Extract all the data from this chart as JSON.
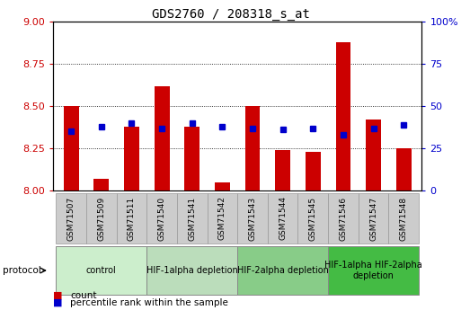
{
  "title": "GDS2760 / 208318_s_at",
  "samples": [
    "GSM71507",
    "GSM71509",
    "GSM71511",
    "GSM71540",
    "GSM71541",
    "GSM71542",
    "GSM71543",
    "GSM71544",
    "GSM71545",
    "GSM71546",
    "GSM71547",
    "GSM71548"
  ],
  "red_values": [
    8.5,
    8.07,
    8.38,
    8.62,
    8.38,
    8.05,
    8.5,
    8.24,
    8.23,
    8.88,
    8.42,
    8.25
  ],
  "blue_values": [
    35,
    38,
    40,
    37,
    40,
    38,
    37,
    36,
    37,
    33,
    37,
    39
  ],
  "ylim_left": [
    8.0,
    9.0
  ],
  "ylim_right": [
    0,
    100
  ],
  "yticks_left": [
    8.0,
    8.25,
    8.5,
    8.75,
    9.0
  ],
  "yticks_right": [
    0,
    25,
    50,
    75,
    100
  ],
  "ytick_labels_right": [
    "0",
    "25",
    "50",
    "75",
    "100%"
  ],
  "bar_color": "#cc0000",
  "dot_color": "#0000cc",
  "bar_bottom": 8.0,
  "groups": [
    {
      "label": "control",
      "start": 0,
      "end": 3,
      "color": "#cceecc"
    },
    {
      "label": "HIF-1alpha depletion",
      "start": 3,
      "end": 6,
      "color": "#bbddbb"
    },
    {
      "label": "HIF-2alpha depletion",
      "start": 6,
      "end": 9,
      "color": "#88cc88"
    },
    {
      "label": "HIF-1alpha HIF-2alpha\ndepletion",
      "start": 9,
      "end": 12,
      "color": "#44bb44"
    }
  ],
  "bar_width": 0.5,
  "left_axis_color": "#cc0000",
  "right_axis_color": "#0000cc",
  "protocol_label": "protocol",
  "legend_items": [
    {
      "label": "count",
      "color": "#cc0000"
    },
    {
      "label": "percentile rank within the sample",
      "color": "#0000cc"
    }
  ],
  "x_tick_bg": "#cccccc",
  "grid_yticks": [
    8.25,
    8.5,
    8.75
  ]
}
